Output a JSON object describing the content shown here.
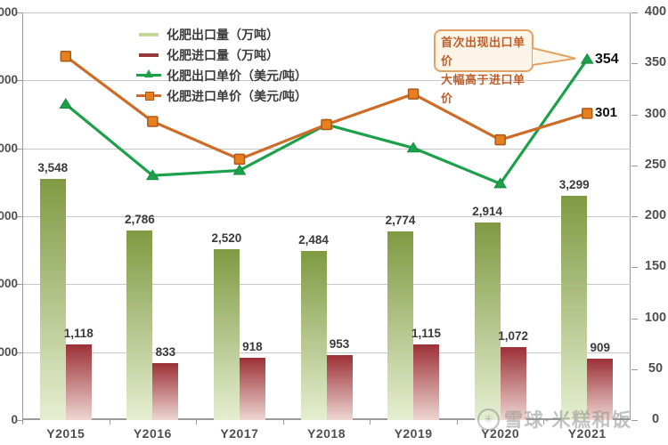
{
  "chart_data": {
    "type": "combo",
    "categories": [
      "Y2015",
      "Y2016",
      "Y2017",
      "Y2018",
      "Y2019",
      "Y2020",
      "Y2021"
    ],
    "series": [
      {
        "name": "化肥出口量（万吨）",
        "type": "bar",
        "axis": "left",
        "role": "export-volume",
        "values": [
          3548,
          2786,
          2520,
          2484,
          2774,
          2914,
          3299
        ]
      },
      {
        "name": "化肥进口量（万吨）",
        "type": "bar",
        "axis": "left",
        "role": "import-volume",
        "values": [
          1118,
          833,
          918,
          953,
          1115,
          1072,
          909
        ]
      },
      {
        "name": "化肥出口单价（美元/吨）",
        "type": "line",
        "marker": "triangle",
        "axis": "right",
        "role": "export-price",
        "values": [
          310,
          240,
          245,
          290,
          267,
          232,
          354
        ],
        "end_label": "354"
      },
      {
        "name": "化肥进口单价（美元/吨）",
        "type": "line",
        "marker": "square",
        "axis": "right",
        "role": "import-price",
        "values": [
          357,
          293,
          256,
          290,
          320,
          275,
          301
        ],
        "end_label": "301"
      }
    ],
    "left_axis": {
      "min": 0,
      "max": 6000,
      "step": 1000
    },
    "right_axis": {
      "min": 0,
      "max": 400,
      "step": 50
    },
    "grid": true,
    "legend_position": "top-left-inside"
  },
  "annotation": {
    "line1": "首次出现出口单价",
    "line2": "大幅高于进口单价"
  },
  "watermark": {
    "logo": "snowball-icon",
    "text": "雪球·米糕和饭"
  },
  "colors": {
    "bar_export_top": "#7f9a42",
    "bar_export_bottom": "#e6eed1",
    "bar_import_top": "#9c3037",
    "bar_import_bottom": "#edd6d1",
    "line_export": "#1ca14a",
    "line_export_dark": "#128a3e",
    "line_import": "#ce6b26",
    "marker_import_fill": "#e6801f",
    "marker_import_border": "#ae5818",
    "grid": "#c8c8c8",
    "axis": "#9a9a9a",
    "label": "#3a3a3a",
    "callout_border": "#e2a262",
    "callout_bg": "#fcf4e7",
    "callout_text": "#c05e2a",
    "watermark": "#8f8f8f"
  }
}
